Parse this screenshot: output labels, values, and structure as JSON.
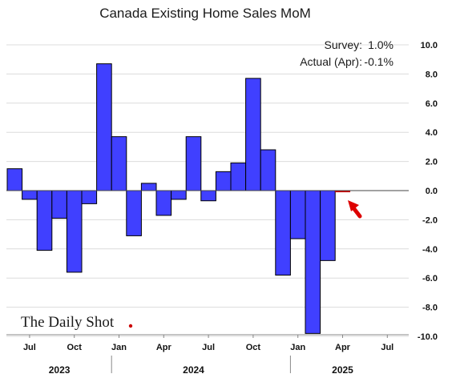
{
  "chart_data": {
    "type": "bar",
    "title": "Canada Existing Home Sales MoM",
    "annotations": {
      "survey_label": "Survey:",
      "survey_value": "1.0%",
      "actual_label": "Actual (Apr):",
      "actual_value": "-0.1%"
    },
    "categories": [
      "2023-06",
      "2023-07",
      "2023-08",
      "2023-09",
      "2023-10",
      "2023-11",
      "2023-12",
      "2024-01",
      "2024-02",
      "2024-03",
      "2024-04",
      "2024-05",
      "2024-06",
      "2024-07",
      "2024-08",
      "2024-09",
      "2024-10",
      "2024-11",
      "2024-12",
      "2025-01",
      "2025-02",
      "2025-03",
      "2025-04"
    ],
    "values": [
      1.5,
      -0.6,
      -4.1,
      -1.9,
      -5.6,
      -0.9,
      8.7,
      3.7,
      -3.1,
      0.5,
      -1.7,
      -0.6,
      3.7,
      -0.7,
      1.3,
      1.9,
      7.7,
      2.8,
      -5.8,
      -3.3,
      -9.8,
      -4.8,
      -0.1
    ],
    "highlight_color": "#cc0000",
    "bar_color": "#4040ff",
    "ylim": [
      -10,
      10
    ],
    "yticks": [
      "10.0",
      "8.0",
      "6.0",
      "4.0",
      "2.0",
      "0.0",
      "-2.0",
      "-4.0",
      "-6.0",
      "-8.0",
      "-10.0"
    ],
    "xticks": [
      "Jul",
      "Oct",
      "Jan",
      "Apr",
      "Jul",
      "Oct",
      "Jan",
      "Apr",
      "Jul"
    ],
    "years": [
      "2023",
      "2024",
      "2025"
    ],
    "grid": "horizontal",
    "watermark": "The Daily Shot"
  }
}
